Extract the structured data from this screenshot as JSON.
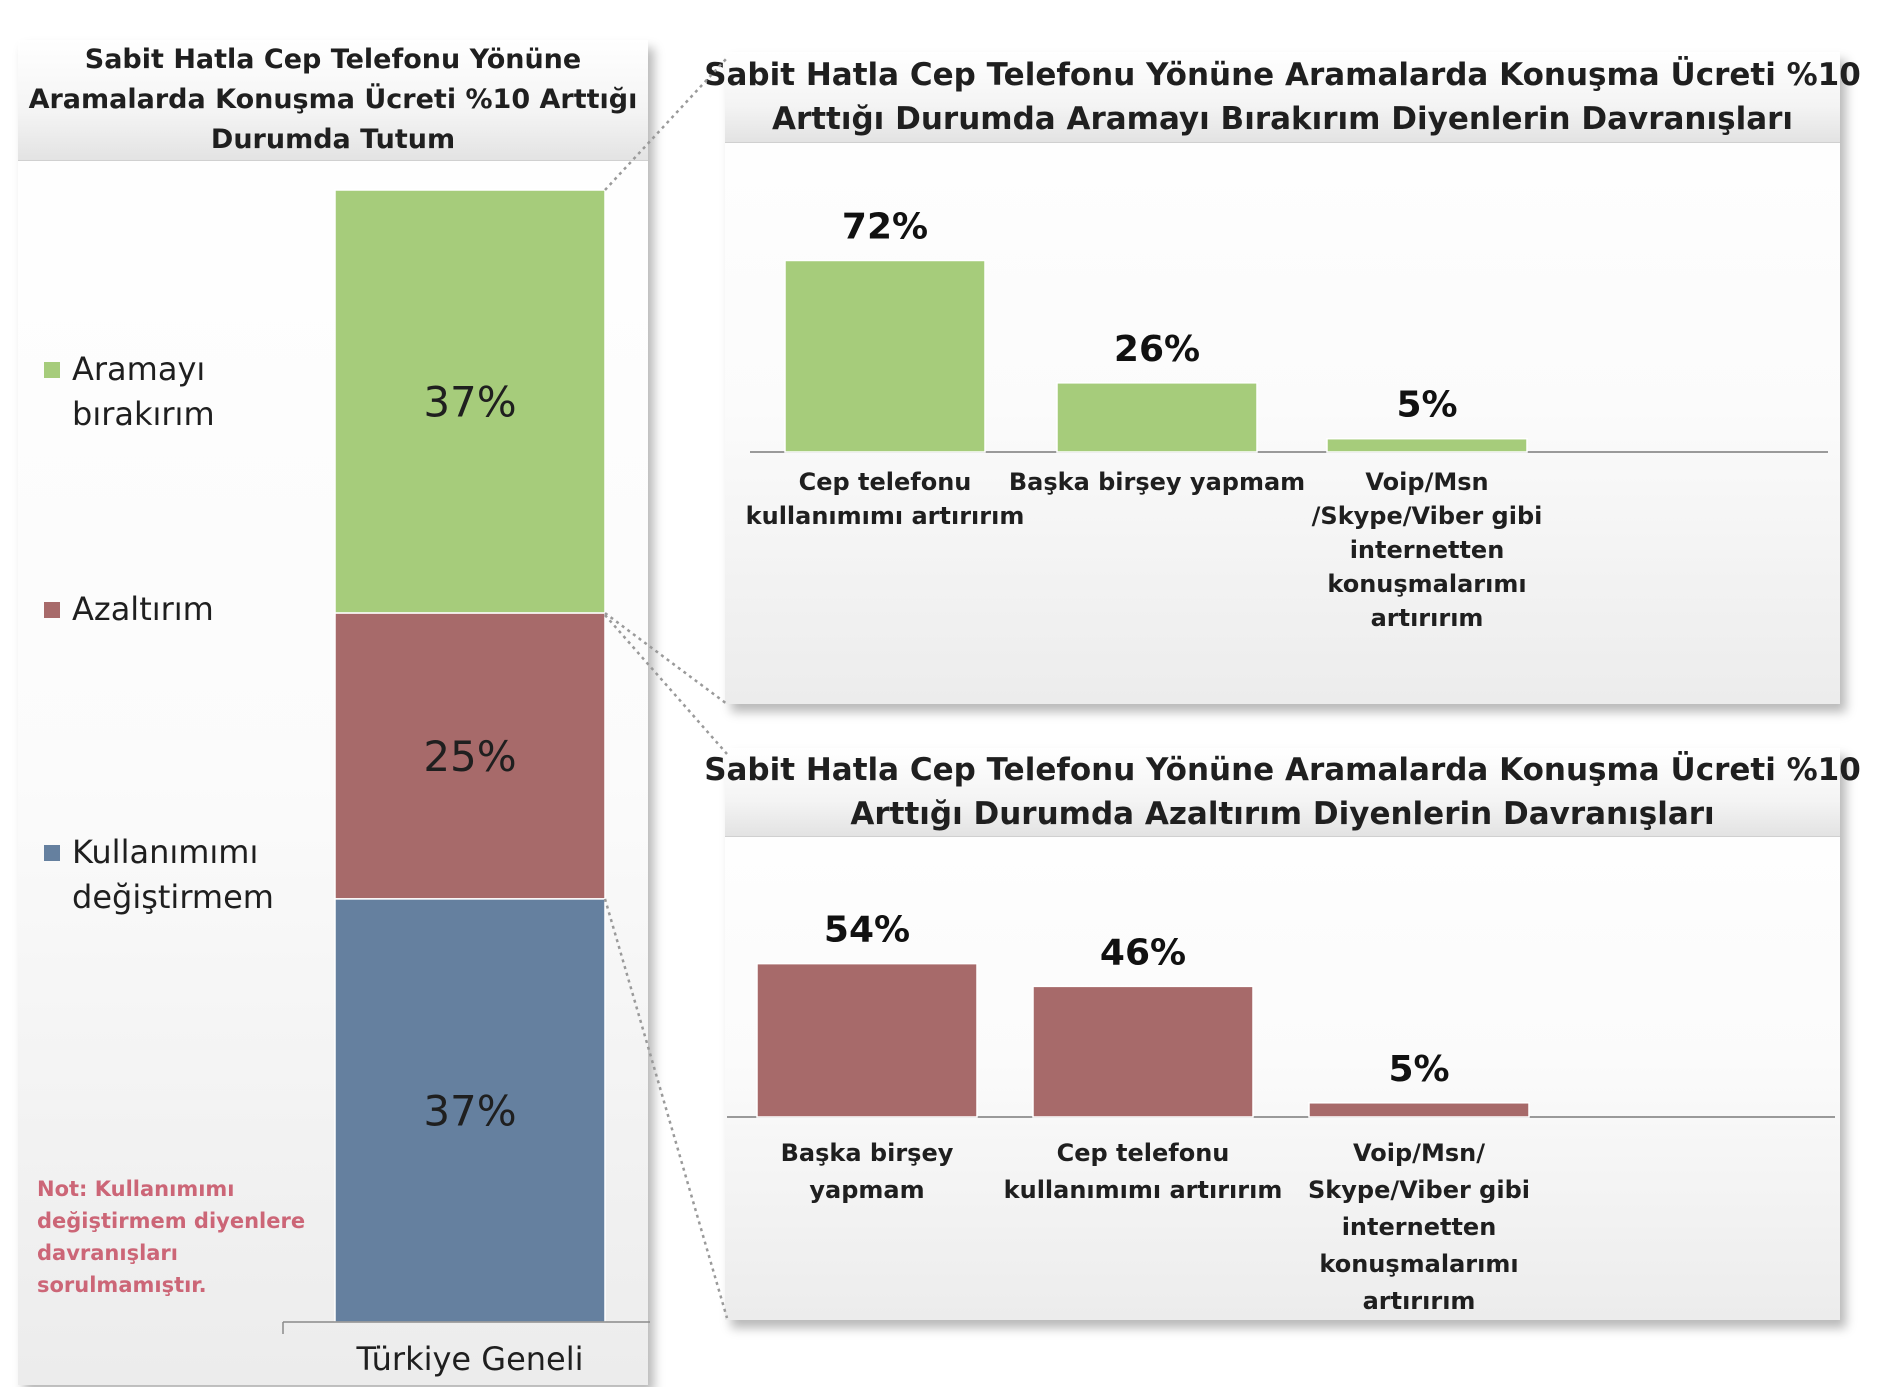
{
  "colors": {
    "green": "#a6cc7b",
    "red": "#a76a6a",
    "blue": "#65809f",
    "note": "#cc6677"
  },
  "chart_data": [
    {
      "type": "bar",
      "stacked": true,
      "title_lines": [
        "Sabit Hatla Cep Telefonu Yönüne",
        "Aramalarda Konuşma Ücreti %10 Arttığı",
        "Durumda Tutum"
      ],
      "categories": [
        "Türkiye Geneli"
      ],
      "series": [
        {
          "name_lines": [
            "Aramayı",
            "bırakırım"
          ],
          "values": [
            37
          ],
          "label": "37%",
          "color": "#a6cc7b"
        },
        {
          "name_lines": [
            "Azaltırım"
          ],
          "values": [
            25
          ],
          "label": "25%",
          "color": "#a76a6a"
        },
        {
          "name_lines": [
            "Kullanımımı",
            "değiştirmem"
          ],
          "values": [
            37
          ],
          "label": "37%",
          "color": "#65809f"
        }
      ],
      "legend_position": "left",
      "note_lines": [
        "Not: Kullanımımı",
        "değiştirmem diyenlere",
        "davranışları",
        "sorulmamıştır."
      ]
    },
    {
      "type": "bar",
      "title_lines": [
        "Sabit Hatla Cep Telefonu Yönüne Aramalarda Konuşma Ücreti %10",
        "Arttığı Durumda Aramayı Bırakırım Diyenlerin Davranışları"
      ],
      "categories": [
        [
          "Cep telefonu",
          "kullanımımı artırırım"
        ],
        [
          "Başka birşey yapmam"
        ],
        [
          "Voip/Msn",
          "/Skype/Viber gibi",
          "internetten",
          "konuşmalarımı",
          "artırırım"
        ]
      ],
      "values": [
        72,
        26,
        5
      ],
      "labels": [
        "72%",
        "26%",
        "5%"
      ],
      "color": "#a6cc7b"
    },
    {
      "type": "bar",
      "title_lines": [
        "Sabit Hatla Cep Telefonu Yönüne Aramalarda Konuşma Ücreti %10",
        "Arttığı Durumda Azaltırım Diyenlerin Davranışları"
      ],
      "categories": [
        [
          "Başka birşey",
          "yapmam"
        ],
        [
          "Cep telefonu",
          "kullanımımı artırırım"
        ],
        [
          "Voip/Msn/",
          "Skype/Viber gibi",
          "internetten",
          "konuşmalarımı",
          "artırırım"
        ]
      ],
      "values": [
        54,
        46,
        5
      ],
      "labels": [
        "54%",
        "46%",
        "5%"
      ],
      "color": "#a76a6a"
    }
  ]
}
